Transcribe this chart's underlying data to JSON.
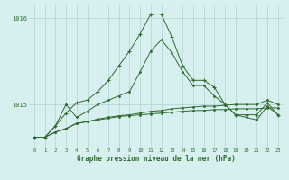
{
  "x": [
    0,
    1,
    2,
    3,
    4,
    5,
    6,
    7,
    8,
    9,
    10,
    11,
    12,
    13,
    14,
    15,
    16,
    17,
    18,
    19,
    20,
    21,
    22,
    23
  ],
  "series_flat1": [
    1014.62,
    1014.62,
    1014.68,
    1014.72,
    1014.78,
    1014.8,
    1014.82,
    1014.84,
    1014.86,
    1014.87,
    1014.88,
    1014.89,
    1014.9,
    1014.91,
    1014.92,
    1014.93,
    1014.93,
    1014.94,
    1014.94,
    1014.95,
    1014.95,
    1014.95,
    1014.96,
    1014.96
  ],
  "series_flat2": [
    1014.62,
    1014.62,
    1014.68,
    1014.72,
    1014.78,
    1014.8,
    1014.83,
    1014.85,
    1014.87,
    1014.88,
    1014.9,
    1014.92,
    1014.93,
    1014.95,
    1014.96,
    1014.97,
    1014.98,
    1014.98,
    1014.99,
    1015.0,
    1015.0,
    1015.0,
    1015.05,
    1015.0
  ],
  "series_mid": [
    1014.62,
    1014.62,
    1014.75,
    1015.0,
    1014.85,
    1014.92,
    1015.0,
    1015.05,
    1015.1,
    1015.15,
    1015.38,
    1015.62,
    1015.75,
    1015.6,
    1015.38,
    1015.22,
    1015.22,
    1015.1,
    1015.0,
    1014.88,
    1014.85,
    1014.82,
    1014.98,
    1014.88
  ],
  "series_peak": [
    1014.62,
    1014.62,
    1014.75,
    1014.9,
    1015.02,
    1015.05,
    1015.15,
    1015.28,
    1015.45,
    1015.62,
    1015.82,
    1016.05,
    1016.05,
    1015.78,
    1015.45,
    1015.28,
    1015.28,
    1015.2,
    1015.0,
    1014.88,
    1014.88,
    1014.88,
    1015.02,
    1014.88
  ],
  "bg_color": "#d8eff0",
  "line_color": "#2d6a2d",
  "grid_color": "#b0d4d4",
  "xlabel": "Graphe pression niveau de la mer (hPa)",
  "ylim": [
    1014.5,
    1016.15
  ],
  "yticks": [
    1015,
    1016
  ],
  "xticks": [
    0,
    1,
    2,
    3,
    4,
    5,
    6,
    7,
    8,
    9,
    10,
    11,
    12,
    13,
    14,
    15,
    16,
    17,
    18,
    19,
    20,
    21,
    22,
    23
  ]
}
